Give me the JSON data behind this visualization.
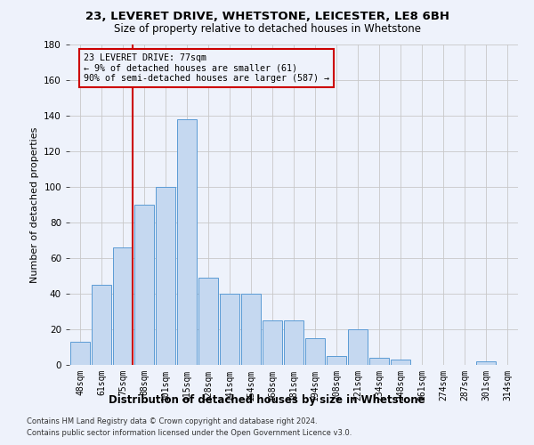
{
  "title1": "23, LEVERET DRIVE, WHETSTONE, LEICESTER, LE8 6BH",
  "title2": "Size of property relative to detached houses in Whetstone",
  "xlabel": "Distribution of detached houses by size in Whetstone",
  "ylabel": "Number of detached properties",
  "categories": [
    "48sqm",
    "61sqm",
    "75sqm",
    "88sqm",
    "101sqm",
    "115sqm",
    "128sqm",
    "141sqm",
    "154sqm",
    "168sqm",
    "181sqm",
    "194sqm",
    "208sqm",
    "221sqm",
    "234sqm",
    "248sqm",
    "261sqm",
    "274sqm",
    "287sqm",
    "301sqm",
    "314sqm"
  ],
  "values": [
    13,
    45,
    66,
    90,
    100,
    138,
    49,
    40,
    40,
    25,
    25,
    15,
    5,
    20,
    4,
    3,
    0,
    0,
    0,
    2,
    0
  ],
  "bar_color": "#c5d8f0",
  "bar_edge_color": "#5b9bd5",
  "vline_index": 2,
  "vline_color": "#cc0000",
  "annotation_line1": "23 LEVERET DRIVE: 77sqm",
  "annotation_line2": "← 9% of detached houses are smaller (61)",
  "annotation_line3": "90% of semi-detached houses are larger (587) →",
  "annotation_box_color": "#cc0000",
  "ylim": [
    0,
    180
  ],
  "yticks": [
    0,
    20,
    40,
    60,
    80,
    100,
    120,
    140,
    160,
    180
  ],
  "footer1": "Contains HM Land Registry data © Crown copyright and database right 2024.",
  "footer2": "Contains public sector information licensed under the Open Government Licence v3.0.",
  "background_color": "#eef2fb",
  "grid_color": "#c8c8c8"
}
